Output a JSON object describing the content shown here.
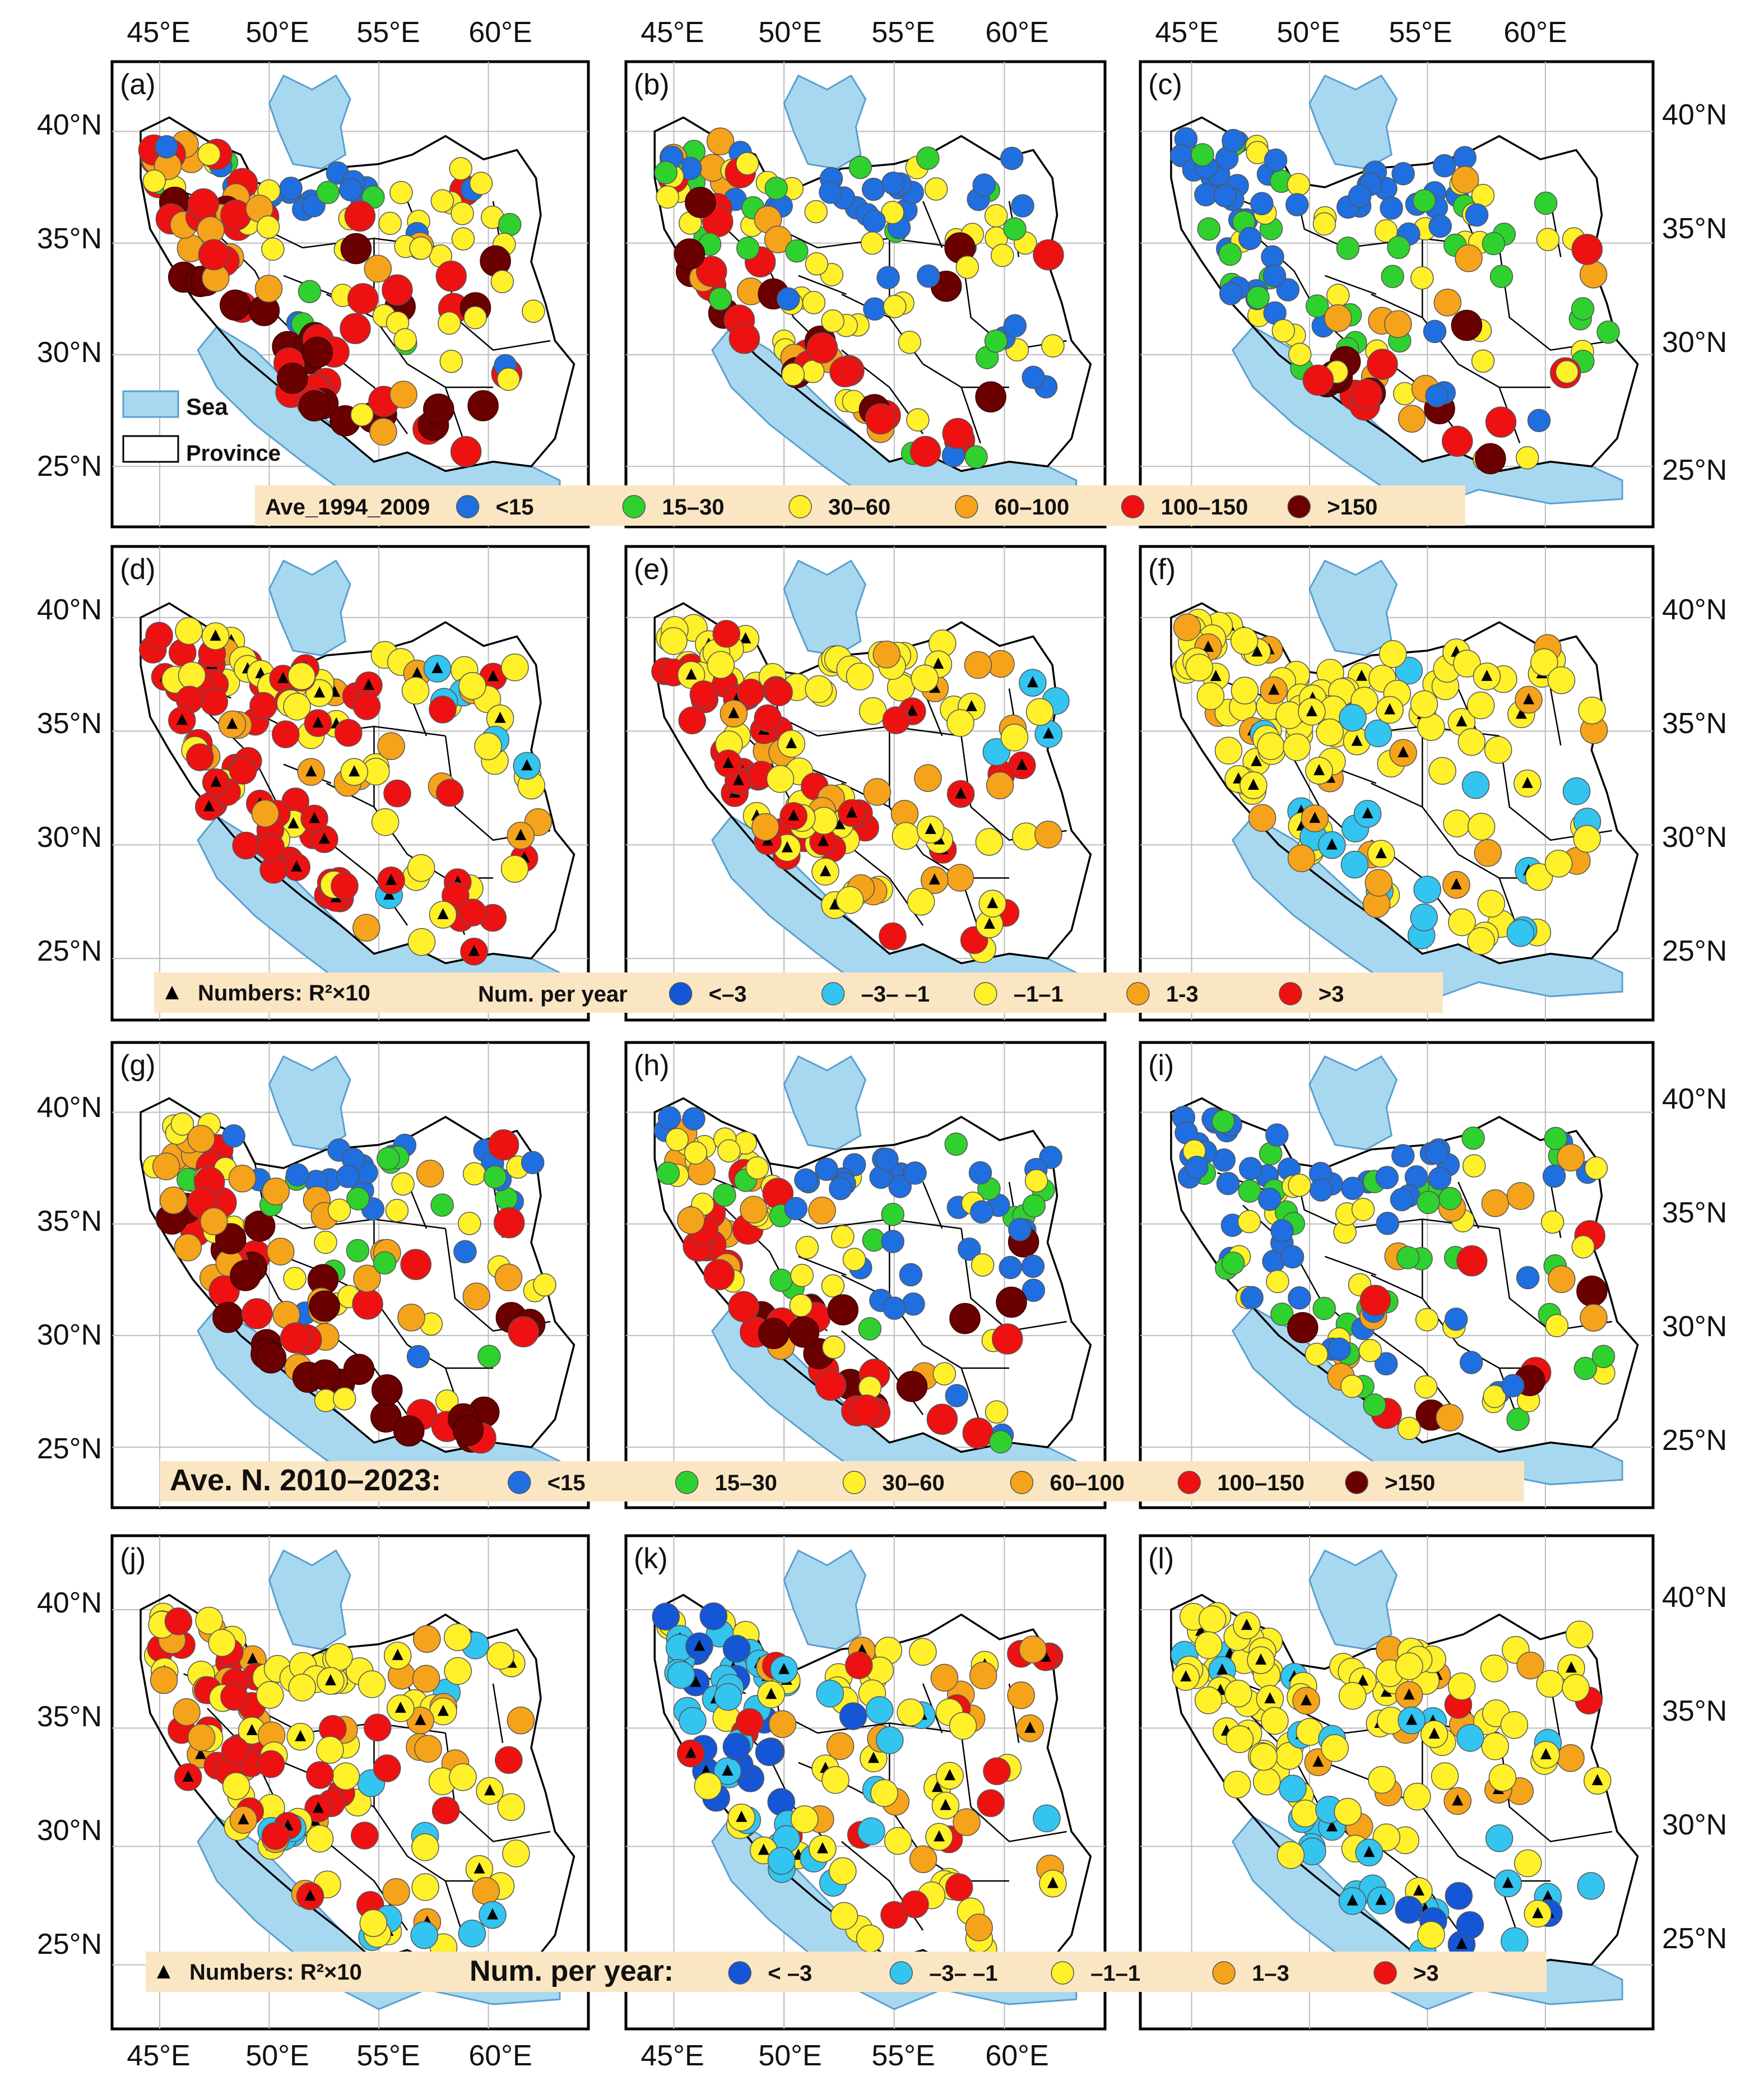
{
  "figure": {
    "top_lon_ticks": [
      "45°E",
      "50°E",
      "55°E",
      "60°E"
    ],
    "bottom_lon_ticks": [
      "45°E",
      "50°E",
      "55°E",
      "60°E"
    ],
    "lat_ticks": [
      "40°N",
      "35°N",
      "30°N",
      "25°N"
    ],
    "panels": [
      {
        "id": "a",
        "label": "(a)",
        "mode": "avg1",
        "seed": 11
      },
      {
        "id": "b",
        "label": "(b)",
        "mode": "avg2",
        "seed": 23
      },
      {
        "id": "c",
        "label": "(c)",
        "mode": "avg3",
        "seed": 37
      },
      {
        "id": "d",
        "label": "(d)",
        "mode": "tr1",
        "seed": 41
      },
      {
        "id": "e",
        "label": "(e)",
        "mode": "tr2",
        "seed": 53
      },
      {
        "id": "f",
        "label": "(f)",
        "mode": "tr3",
        "seed": 67
      },
      {
        "id": "g",
        "label": "(g)",
        "mode": "avg1",
        "seed": 71
      },
      {
        "id": "h",
        "label": "(h)",
        "mode": "avg2",
        "seed": 83
      },
      {
        "id": "i",
        "label": "(i)",
        "mode": "avg3",
        "seed": 97
      },
      {
        "id": "j",
        "label": "(j)",
        "mode": "tr4",
        "seed": 101
      },
      {
        "id": "k",
        "label": "(k)",
        "mode": "tr5",
        "seed": 113
      },
      {
        "id": "l",
        "label": "(l)",
        "mode": "tr6",
        "seed": 127
      }
    ],
    "map_legend": {
      "sea": "Sea",
      "province": "Province"
    },
    "legend_avg1": {
      "title": "Ave_1994_2009",
      "items": [
        {
          "label": "<15",
          "color": "#1f6fe0"
        },
        {
          "label": "15–30",
          "color": "#2fd12f"
        },
        {
          "label": "30–60",
          "color": "#fff02a"
        },
        {
          "label": "60–100",
          "color": "#f5a31a"
        },
        {
          "label": "100–150",
          "color": "#ee1111"
        },
        {
          "label": ">150",
          "color": "#6b0000"
        }
      ]
    },
    "legend_trend1": {
      "tri_label": "Numbers: R²×10",
      "title": "Num. per year",
      "items": [
        {
          "label": "<–3",
          "color": "#1456d6"
        },
        {
          "label": "–3– –1",
          "color": "#33c4f0"
        },
        {
          "label": "–1–1",
          "color": "#fff02a"
        },
        {
          "label": "1-3",
          "color": "#f5a31a"
        },
        {
          "label": ">3",
          "color": "#ee1111"
        }
      ]
    },
    "legend_avg2": {
      "title": "Ave. N. 2010–2023:",
      "items": [
        {
          "label": "<15",
          "color": "#1f6fe0"
        },
        {
          "label": "15–30",
          "color": "#2fd12f"
        },
        {
          "label": "30–60",
          "color": "#fff02a"
        },
        {
          "label": "60–100",
          "color": "#f5a31a"
        },
        {
          "label": "100–150",
          "color": "#ee1111"
        },
        {
          "label": ">150",
          "color": "#6b0000"
        }
      ]
    },
    "legend_trend2": {
      "tri_label": "Numbers: R²×10",
      "title": "Num. per year:",
      "items": [
        {
          "label": "< –3",
          "color": "#1456d6"
        },
        {
          "label": "–3– –1",
          "color": "#33c4f0"
        },
        {
          "label": "–1–1",
          "color": "#fff02a"
        },
        {
          "label": "1–3",
          "color": "#f5a31a"
        },
        {
          "label": ">3",
          "color": "#ee1111"
        }
      ]
    },
    "colors": {
      "sea": "#a8d8f0",
      "sea_edge": "#5a9fd0",
      "legend_bg": "#fbe6c3",
      "grid": "#bdbdbd",
      "frame": "#000000"
    }
  }
}
